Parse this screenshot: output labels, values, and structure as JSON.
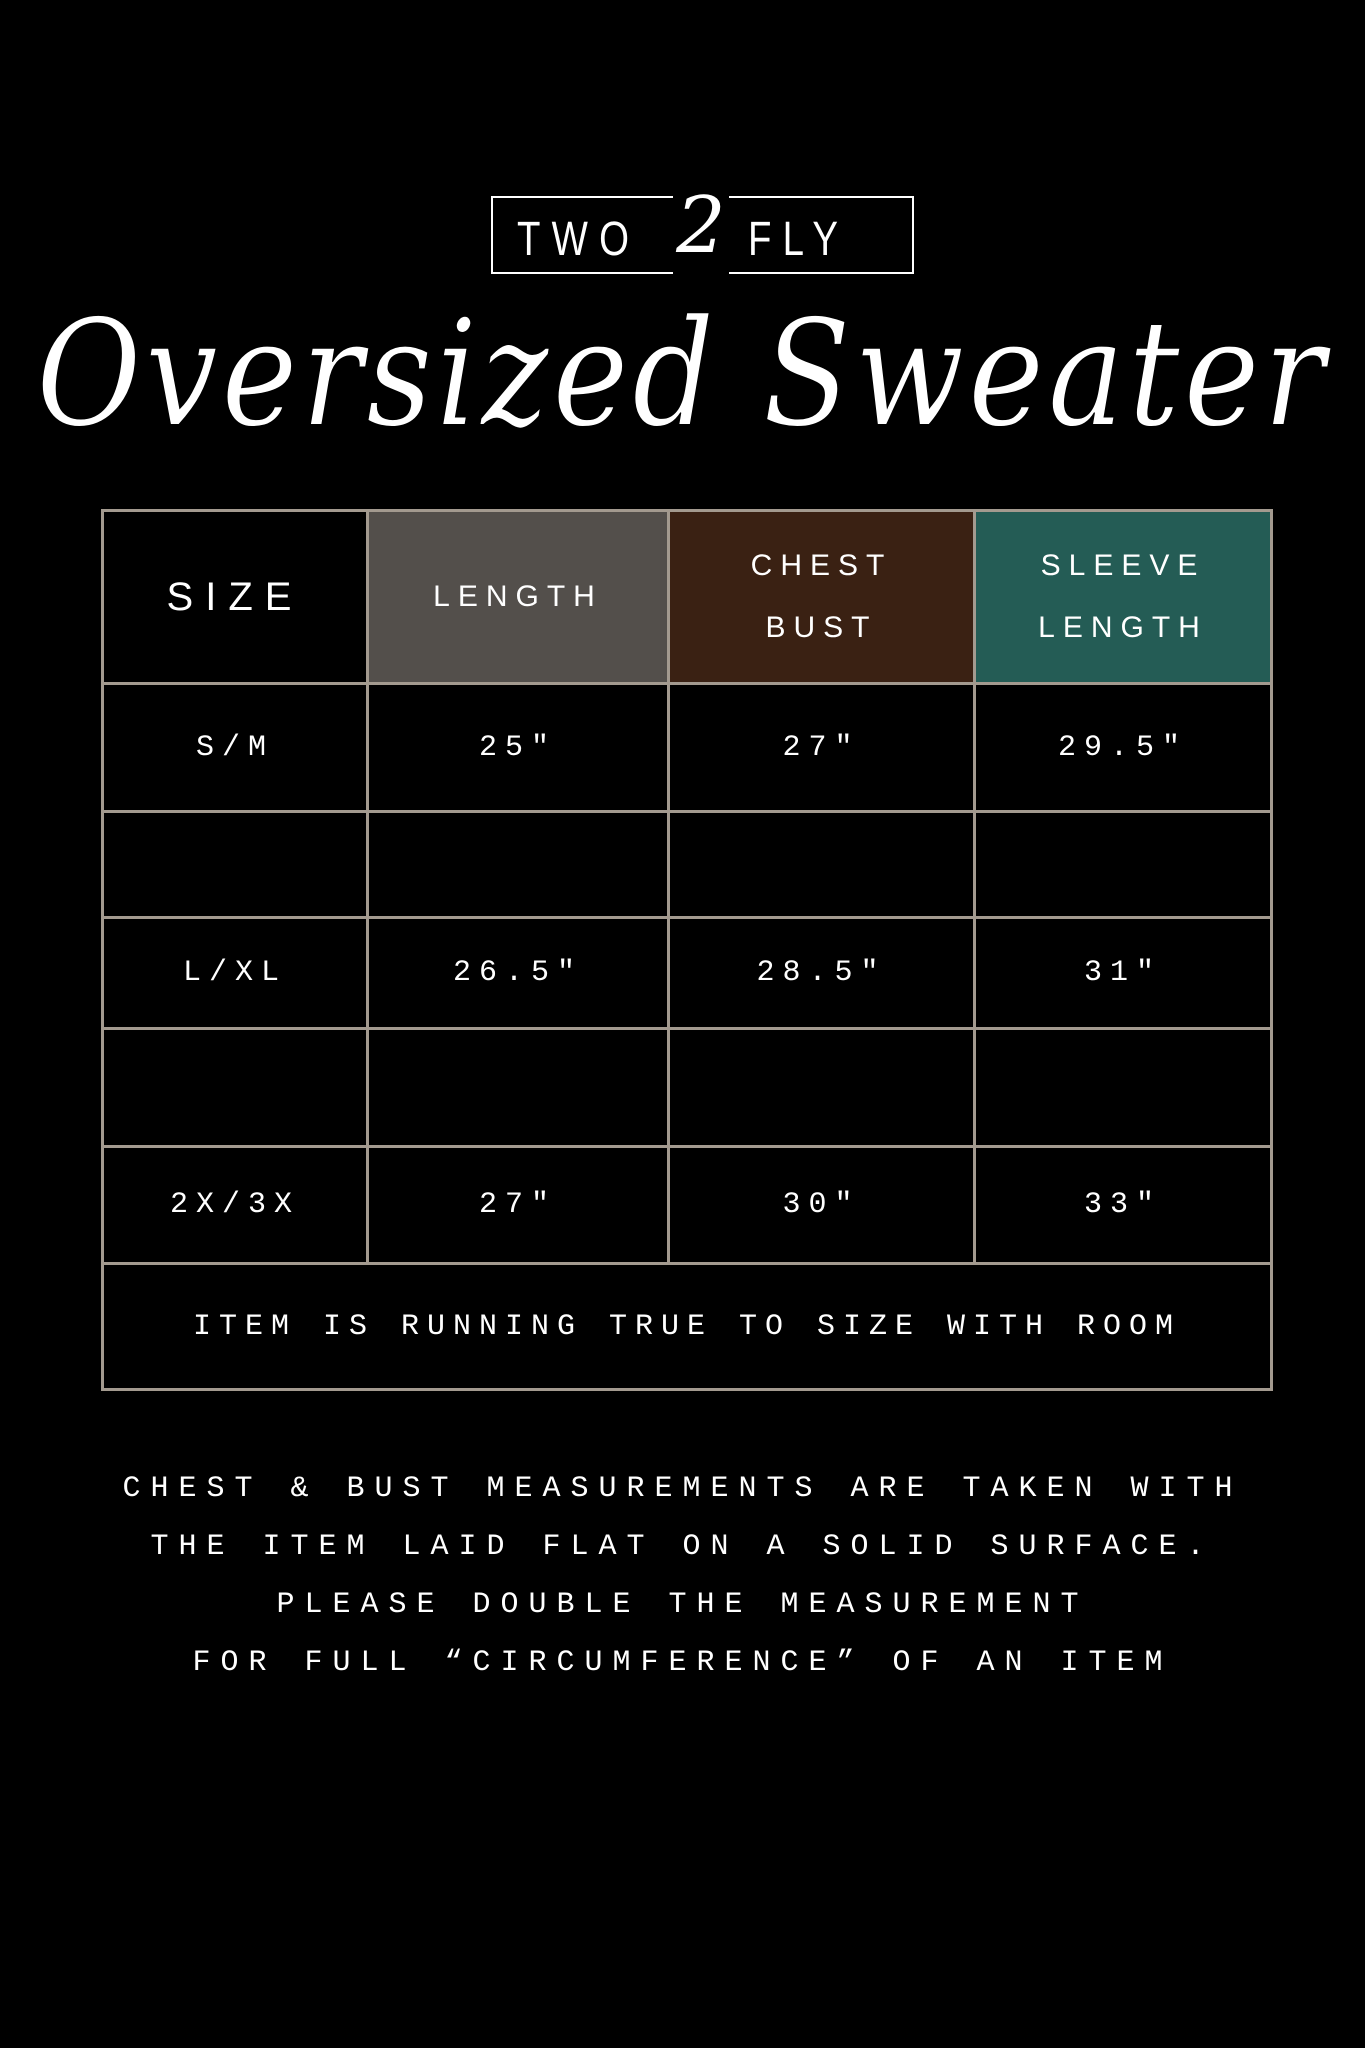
{
  "logo": {
    "left": "TWO",
    "mid": "2",
    "right": "FLY"
  },
  "title": "Oversized Sweater",
  "header": {
    "size": "SIZE",
    "length": "LENGTH",
    "chest": [
      "CHEST",
      "BUST"
    ],
    "sleeve": [
      "SLEEVE",
      "LENGTH"
    ]
  },
  "colors": {
    "length": "#534f4b",
    "chest": "#3a2113",
    "sleeve": "#245c55",
    "border": "#a39a8f"
  },
  "rows": [
    [
      "S/M",
      "25\"",
      "27\"",
      "29.5\""
    ],
    [
      "",
      "",
      "",
      ""
    ],
    [
      "L/XL",
      "26.5\"",
      "28.5\"",
      "31\""
    ],
    [
      "",
      "",
      "",
      ""
    ],
    [
      "2X/3X",
      "27\"",
      "30\"",
      "33\""
    ]
  ],
  "fit_note": "ITEM IS RUNNING TRUE TO SIZE WITH ROOM",
  "notes": [
    "CHEST & BUST MEASUREMENTS ARE TAKEN WITH",
    "THE ITEM LAID FLAT ON A SOLID SURFACE.",
    "PLEASE DOUBLE THE MEASUREMENT",
    "FOR FULL “CIRCUMFERENCE” OF AN ITEM"
  ]
}
